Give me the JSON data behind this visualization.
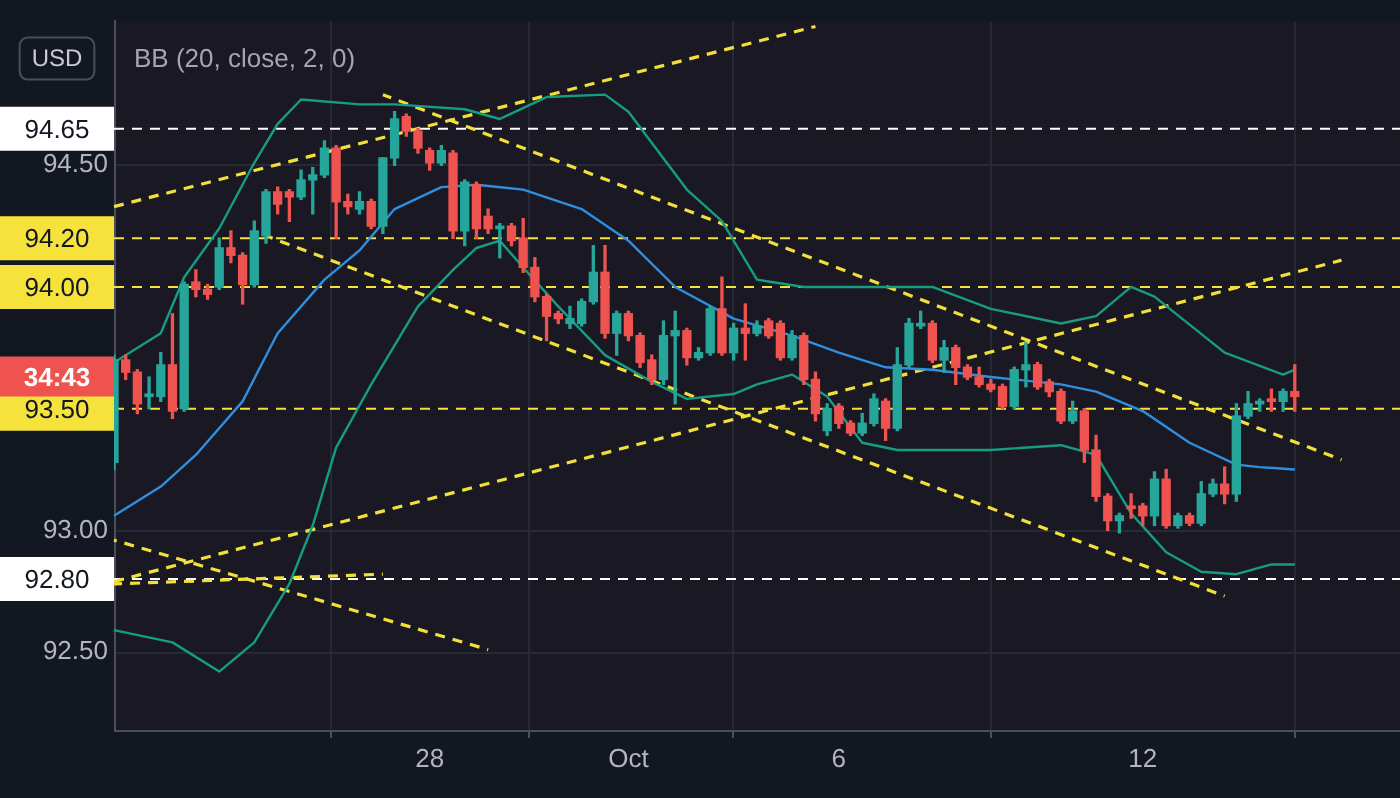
{
  "chart_data": {
    "type": "candlestick",
    "title": "BB (20, close, 2, 0)",
    "ylabel": "USD",
    "ylim": [
      92.18,
      95.09
    ],
    "yticks": [
      {
        "value": 92.5,
        "label": "92.50"
      },
      {
        "value": 93,
        "label": "93.00"
      },
      {
        "value": 94.5,
        "label": "94.50"
      }
    ],
    "grid": true,
    "categories": [
      null,
      null,
      null,
      null,
      null,
      null,
      null,
      null,
      null,
      null,
      null,
      null,
      null,
      null,
      null,
      null,
      null,
      null,
      null,
      null,
      null,
      null,
      null,
      null,
      null,
      null,
      null,
      "28",
      null,
      null,
      null,
      null,
      null,
      null,
      null,
      null,
      null,
      null,
      null,
      null,
      null,
      null,
      null,
      null,
      "Oct",
      null,
      null,
      null,
      null,
      null,
      null,
      null,
      null,
      null,
      null,
      null,
      null,
      null,
      null,
      null,
      null,
      null,
      "6",
      null,
      null,
      null,
      null,
      null,
      null,
      null,
      null,
      null,
      null,
      null,
      null,
      null,
      null,
      null,
      null,
      null,
      null,
      null,
      null,
      null,
      null,
      null,
      null,
      null,
      "12",
      null,
      null,
      null,
      null,
      null,
      null,
      null,
      null,
      null,
      null,
      null,
      null,
      null,
      null,
      null,
      null,
      null,
      null,
      null,
      null,
      null,
      null
    ],
    "ohlc": [
      [
        93.28,
        93.72,
        93.25,
        93.7
      ],
      [
        93.7,
        93.72,
        93.62,
        93.65
      ],
      [
        93.65,
        93.66,
        93.48,
        93.52
      ],
      [
        93.55,
        93.63,
        93.5,
        93.56
      ],
      [
        93.55,
        93.73,
        93.53,
        93.68
      ],
      [
        93.68,
        93.89,
        93.46,
        93.49
      ],
      [
        93.5,
        94.02,
        93.49,
        94.01
      ],
      [
        94.02,
        94.07,
        93.96,
        93.99
      ],
      [
        93.99,
        94.01,
        93.95,
        93.97
      ],
      [
        94.0,
        94.2,
        93.99,
        94.16
      ],
      [
        94.16,
        94.23,
        94.1,
        94.13
      ],
      [
        94.13,
        94.14,
        93.93,
        94.01
      ],
      [
        94.01,
        94.27,
        94.0,
        94.23
      ],
      [
        94.21,
        94.4,
        94.18,
        94.39
      ],
      [
        94.39,
        94.41,
        94.3,
        94.34
      ],
      [
        94.39,
        94.4,
        94.27,
        94.37
      ],
      [
        94.37,
        94.48,
        94.36,
        94.44
      ],
      [
        94.44,
        94.49,
        94.3,
        94.46
      ],
      [
        94.46,
        94.6,
        94.45,
        94.57
      ],
      [
        94.57,
        94.58,
        94.2,
        94.35
      ],
      [
        94.35,
        94.38,
        94.3,
        94.33
      ],
      [
        94.32,
        94.39,
        94.3,
        94.35
      ],
      [
        94.35,
        94.36,
        94.24,
        94.25
      ],
      [
        94.25,
        94.53,
        94.22,
        94.53
      ],
      [
        94.53,
        94.72,
        94.5,
        94.69
      ],
      [
        94.7,
        94.71,
        94.62,
        94.64
      ],
      [
        94.64,
        94.65,
        94.55,
        94.57
      ],
      [
        94.56,
        94.57,
        94.48,
        94.51
      ],
      [
        94.51,
        94.58,
        94.5,
        94.56
      ],
      [
        94.55,
        94.56,
        94.2,
        94.23
      ],
      [
        94.23,
        94.44,
        94.17,
        94.43
      ],
      [
        94.42,
        94.43,
        94.2,
        94.24
      ],
      [
        94.29,
        94.32,
        94.22,
        94.24
      ],
      [
        94.24,
        94.26,
        94.12,
        94.25
      ],
      [
        94.25,
        94.26,
        94.17,
        94.19
      ],
      [
        94.2,
        94.28,
        94.06,
        94.08
      ],
      [
        94.08,
        94.12,
        93.94,
        93.96
      ],
      [
        93.96,
        93.97,
        93.78,
        93.88
      ],
      [
        93.89,
        93.9,
        93.85,
        93.87
      ],
      [
        93.85,
        93.92,
        93.83,
        93.87
      ],
      [
        93.85,
        93.95,
        93.84,
        93.94
      ],
      [
        93.94,
        94.17,
        93.93,
        94.06
      ],
      [
        94.06,
        94.17,
        93.79,
        93.81
      ],
      [
        93.81,
        93.9,
        93.72,
        93.89
      ],
      [
        93.89,
        93.9,
        93.78,
        93.8
      ],
      [
        93.8,
        93.81,
        93.67,
        93.69
      ],
      [
        93.7,
        93.72,
        93.6,
        93.62
      ],
      [
        93.62,
        93.86,
        93.6,
        93.8
      ],
      [
        93.8,
        93.9,
        93.52,
        93.82
      ],
      [
        93.82,
        93.83,
        93.68,
        93.71
      ],
      [
        93.71,
        93.75,
        93.7,
        93.73
      ],
      [
        93.73,
        93.92,
        93.72,
        93.91
      ],
      [
        93.91,
        94.04,
        93.72,
        93.73
      ],
      [
        93.73,
        93.85,
        93.7,
        93.83
      ],
      [
        93.83,
        93.93,
        93.7,
        93.81
      ],
      [
        93.81,
        93.86,
        93.8,
        93.84
      ],
      [
        93.86,
        93.87,
        93.79,
        93.8
      ],
      [
        93.85,
        93.86,
        93.7,
        93.71
      ],
      [
        93.71,
        93.82,
        93.7,
        93.8
      ],
      [
        93.8,
        93.81,
        93.6,
        93.62
      ],
      [
        93.62,
        93.65,
        93.45,
        93.48
      ],
      [
        93.41,
        93.52,
        93.39,
        93.5
      ],
      [
        93.51,
        93.52,
        93.42,
        93.44
      ],
      [
        93.44,
        93.45,
        93.39,
        93.4
      ],
      [
        93.4,
        93.48,
        93.39,
        93.44
      ],
      [
        93.44,
        93.56,
        93.43,
        93.54
      ],
      [
        93.53,
        93.54,
        93.37,
        93.42
      ],
      [
        93.42,
        93.75,
        93.41,
        93.68
      ],
      [
        93.68,
        93.87,
        93.67,
        93.85
      ],
      [
        93.84,
        93.9,
        93.83,
        93.85
      ],
      [
        93.85,
        93.86,
        93.69,
        93.7
      ],
      [
        93.7,
        93.78,
        93.65,
        93.75
      ],
      [
        93.75,
        93.76,
        93.6,
        93.67
      ],
      [
        93.67,
        93.68,
        93.62,
        93.63
      ],
      [
        93.63,
        93.67,
        93.59,
        93.6
      ],
      [
        93.6,
        93.62,
        93.57,
        93.58
      ],
      [
        93.59,
        93.6,
        93.5,
        93.51
      ],
      [
        93.51,
        93.67,
        93.5,
        93.66
      ],
      [
        93.66,
        93.77,
        93.59,
        93.68
      ],
      [
        93.68,
        93.69,
        93.58,
        93.59
      ],
      [
        93.61,
        93.62,
        93.55,
        93.57
      ],
      [
        93.57,
        93.58,
        93.44,
        93.45
      ],
      [
        93.45,
        93.53,
        93.44,
        93.49
      ],
      [
        93.49,
        93.5,
        93.28,
        93.33
      ],
      [
        93.33,
        93.39,
        93.12,
        93.14
      ],
      [
        93.14,
        93.15,
        93.0,
        93.04
      ],
      [
        93.04,
        93.07,
        92.99,
        93.06
      ],
      [
        93.1,
        93.15,
        93.05,
        93.09
      ],
      [
        93.1,
        93.11,
        93.02,
        93.06
      ],
      [
        93.06,
        93.24,
        93.02,
        93.21
      ],
      [
        93.21,
        93.25,
        93.01,
        93.02
      ],
      [
        93.02,
        93.07,
        93.01,
        93.06
      ],
      [
        93.06,
        93.07,
        93.02,
        93.03
      ],
      [
        93.03,
        93.2,
        93.02,
        93.15
      ],
      [
        93.15,
        93.21,
        93.14,
        93.19
      ],
      [
        93.19,
        93.26,
        93.11,
        93.15
      ],
      [
        93.15,
        93.52,
        93.12,
        93.47
      ],
      [
        93.47,
        93.57,
        93.46,
        93.52
      ],
      [
        93.52,
        93.54,
        93.49,
        93.53
      ],
      [
        93.54,
        93.58,
        93.49,
        93.53
      ],
      [
        93.53,
        93.58,
        93.49,
        93.57
      ],
      [
        93.57,
        93.68,
        93.49,
        93.55
      ],
      null,
      null,
      null,
      null,
      null,
      null,
      null,
      null,
      null
    ],
    "colors": [
      "#26a69a",
      "#ef5350",
      "#ef5350",
      "#26a69a",
      "#26a69a",
      "#ef5350",
      "#26a69a",
      "#ef5350",
      "#ef5350",
      "#26a69a",
      "#ef5350",
      "#ef5350",
      "#26a69a",
      "#26a69a",
      "#ef5350",
      "#ef5350",
      "#26a69a",
      "#26a69a",
      "#26a69a",
      "#ef5350",
      "#ef5350",
      "#26a69a",
      "#ef5350",
      "#26a69a",
      "#26a69a",
      "#ef5350",
      "#ef5350",
      "#ef5350",
      "#26a69a",
      "#ef5350",
      "#26a69a",
      "#ef5350",
      "#ef5350",
      "#26a69a",
      "#ef5350",
      "#ef5350",
      "#ef5350",
      "#ef5350",
      "#ef5350",
      "#26a69a",
      "#26a69a",
      "#26a69a",
      "#ef5350",
      "#26a69a",
      "#ef5350",
      "#ef5350",
      "#ef5350",
      "#26a69a",
      "#26a69a",
      "#ef5350",
      "#26a69a",
      "#26a69a",
      "#ef5350",
      "#26a69a",
      "#ef5350",
      "#26a69a",
      "#ef5350",
      "#ef5350",
      "#26a69a",
      "#ef5350",
      "#ef5350",
      "#26a69a",
      "#ef5350",
      "#ef5350",
      "#26a69a",
      "#26a69a",
      "#ef5350",
      "#26a69a",
      "#26a69a",
      "#26a69a",
      "#ef5350",
      "#26a69a",
      "#ef5350",
      "#ef5350",
      "#ef5350",
      "#ef5350",
      "#ef5350",
      "#26a69a",
      "#26a69a",
      "#ef5350",
      "#ef5350",
      "#ef5350",
      "#26a69a",
      "#ef5350",
      "#ef5350",
      "#ef5350",
      "#26a69a",
      "#ef5350",
      "#ef5350",
      "#26a69a",
      "#ef5350",
      "#26a69a",
      "#ef5350",
      "#26a69a",
      "#26a69a",
      "#ef5350",
      "#26a69a",
      "#26a69a",
      "#26a69a",
      "#ef5350",
      "#26a69a",
      "#ef5350",
      null,
      null,
      null,
      null,
      null,
      null,
      null,
      null,
      null
    ],
    "series": [
      {
        "type": "line",
        "color": "#2e8fe0",
        "values": [
          93.06,
          null,
          null,
          null,
          93.18,
          null,
          null,
          93.31,
          null,
          null,
          null,
          93.53,
          null,
          null,
          93.81,
          null,
          null,
          null,
          94.03,
          null,
          null,
          94.15,
          null,
          null,
          94.32,
          null,
          null,
          null,
          94.41,
          null,
          null,
          94.42,
          null,
          null,
          null,
          94.4,
          null,
          null,
          null,
          null,
          94.32,
          null,
          null,
          null,
          94.19,
          null,
          null,
          null,
          94.0,
          null,
          null,
          null,
          null,
          93.87,
          null,
          null,
          null,
          null,
          93.8,
          null,
          null,
          null,
          93.73,
          null,
          null,
          null,
          93.67,
          null,
          null,
          null,
          93.66,
          null,
          null,
          null,
          null,
          93.63,
          null,
          null,
          null,
          null,
          null,
          93.6,
          null,
          null,
          93.57,
          null,
          null,
          null,
          93.49,
          null,
          null,
          null,
          93.36,
          null,
          null,
          null,
          93.27,
          null,
          93.26,
          null,
          null,
          93.25,
          null,
          null,
          null,
          null,
          null,
          null,
          null,
          null,
          null
        ]
      },
      {
        "type": "line",
        "color": "#179c84",
        "values": [
          93.69,
          null,
          null,
          null,
          93.81,
          null,
          94.04,
          null,
          null,
          94.24,
          null,
          null,
          94.51,
          null,
          94.67,
          null,
          94.77,
          null,
          null,
          null,
          null,
          94.75,
          null,
          null,
          94.75,
          null,
          null,
          null,
          null,
          null,
          94.73,
          null,
          null,
          94.69,
          null,
          null,
          null,
          94.78,
          null,
          null,
          null,
          null,
          94.79,
          null,
          94.72,
          null,
          null,
          null,
          null,
          94.4,
          null,
          null,
          94.27,
          null,
          null,
          94.03,
          null,
          null,
          null,
          94.0,
          null,
          null,
          null,
          null,
          94.0,
          null,
          null,
          null,
          null,
          null,
          94.0,
          null,
          null,
          null,
          null,
          93.91,
          null,
          null,
          null,
          null,
          null,
          93.85,
          null,
          null,
          93.88,
          null,
          null,
          94.0,
          null,
          93.96,
          null,
          null,
          null,
          null,
          null,
          93.73,
          null,
          null,
          null,
          null,
          93.64,
          93.66,
          null,
          null,
          null,
          null,
          null,
          null,
          null,
          null,
          null
        ]
      },
      {
        "type": "line",
        "color": "#179c84",
        "values": [
          92.59,
          null,
          null,
          null,
          null,
          92.54,
          null,
          null,
          null,
          92.42,
          null,
          null,
          92.54,
          null,
          null,
          92.78,
          null,
          93.02,
          null,
          93.34,
          null,
          null,
          93.6,
          null,
          null,
          null,
          93.92,
          null,
          null,
          94.07,
          null,
          94.16,
          null,
          94.19,
          null,
          94.08,
          null,
          null,
          93.92,
          null,
          null,
          null,
          93.72,
          null,
          null,
          null,
          93.61,
          null,
          null,
          93.54,
          null,
          null,
          null,
          93.56,
          null,
          93.6,
          null,
          null,
          93.64,
          null,
          null,
          93.55,
          null,
          null,
          93.36,
          null,
          null,
          93.33,
          null,
          null,
          93.33,
          null,
          null,
          null,
          null,
          93.33,
          null,
          null,
          null,
          null,
          null,
          93.35,
          null,
          null,
          93.31,
          null,
          null,
          93.07,
          null,
          null,
          92.91,
          null,
          null,
          92.83,
          null,
          null,
          92.82,
          null,
          null,
          92.86,
          null,
          92.86,
          null,
          null,
          null,
          null,
          null,
          null,
          null,
          null,
          null
        ]
      },
      {
        "type": "line",
        "color": "#f2e03a",
        "line_style": "dashed",
        "values": [
          94.33,
          null,
          null,
          null,
          null,
          null,
          null,
          null,
          null,
          null,
          null,
          null,
          null,
          null,
          null,
          null,
          null,
          null,
          null,
          null,
          null,
          null,
          null,
          null,
          null,
          null,
          null,
          null,
          null,
          null,
          null,
          null,
          null,
          null,
          null,
          null,
          null,
          null,
          null,
          null,
          null,
          null,
          null,
          null,
          null,
          null,
          null,
          null,
          null,
          null,
          null,
          null,
          null,
          null,
          null,
          null,
          null,
          null,
          null,
          null,
          95.07,
          null,
          null,
          null,
          null,
          null,
          null,
          null,
          null,
          null,
          null,
          null,
          null,
          null,
          null,
          null,
          null,
          null,
          null,
          null,
          null,
          null,
          null,
          null,
          null,
          null,
          null,
          null,
          null,
          null,
          null,
          null,
          null,
          null,
          null,
          null,
          null,
          null,
          null,
          null,
          null,
          null,
          null,
          null,
          null,
          null,
          null,
          null,
          null,
          null,
          null
        ]
      },
      {
        "type": "line",
        "color": "#f2e03a",
        "line_style": "dashed",
        "values": [
          null,
          null,
          null,
          null,
          null,
          null,
          null,
          null,
          null,
          null,
          null,
          null,
          null,
          null,
          null,
          null,
          null,
          null,
          null,
          null,
          null,
          null,
          null,
          94.79,
          null,
          null,
          null,
          null,
          null,
          null,
          null,
          null,
          null,
          null,
          null,
          null,
          null,
          null,
          null,
          null,
          null,
          null,
          null,
          null,
          null,
          null,
          null,
          null,
          null,
          null,
          null,
          null,
          null,
          null,
          null,
          null,
          null,
          null,
          null,
          null,
          null,
          null,
          null,
          null,
          null,
          null,
          null,
          null,
          null,
          null,
          null,
          null,
          null,
          null,
          null,
          null,
          null,
          null,
          null,
          null,
          null,
          null,
          null,
          null,
          null,
          null,
          null,
          null,
          null,
          null,
          null,
          null,
          null,
          null,
          null,
          null,
          null,
          null,
          null,
          null,
          null,
          null,
          null,
          null,
          null,
          93.29,
          null,
          null,
          null,
          null,
          null
        ]
      },
      {
        "type": "line",
        "color": "#f2e03a",
        "line_style": "dashed",
        "values": [
          null,
          null,
          null,
          null,
          null,
          null,
          null,
          null,
          null,
          null,
          null,
          null,
          null,
          94.21,
          null,
          null,
          null,
          null,
          null,
          null,
          null,
          null,
          null,
          null,
          null,
          null,
          null,
          null,
          null,
          null,
          null,
          null,
          null,
          null,
          null,
          null,
          null,
          null,
          null,
          null,
          null,
          null,
          null,
          null,
          null,
          null,
          null,
          null,
          null,
          null,
          null,
          null,
          null,
          null,
          null,
          null,
          null,
          null,
          null,
          null,
          null,
          null,
          null,
          null,
          null,
          null,
          null,
          null,
          null,
          null,
          null,
          null,
          null,
          null,
          null,
          null,
          null,
          null,
          null,
          null,
          null,
          null,
          null,
          null,
          null,
          null,
          null,
          null,
          null,
          null,
          null,
          null,
          null,
          null,
          null,
          92.73,
          null,
          null,
          null,
          null,
          null,
          null,
          null,
          null,
          null,
          null,
          null,
          null,
          null,
          null,
          null
        ]
      },
      {
        "type": "line",
        "color": "#f2e03a",
        "line_style": "dashed",
        "values": [
          92.79,
          null,
          null,
          null,
          null,
          null,
          null,
          null,
          null,
          null,
          null,
          null,
          null,
          null,
          null,
          null,
          null,
          null,
          null,
          null,
          null,
          null,
          null,
          null,
          null,
          null,
          null,
          null,
          null,
          null,
          null,
          null,
          null,
          null,
          null,
          null,
          null,
          null,
          null,
          null,
          null,
          null,
          null,
          null,
          null,
          null,
          null,
          null,
          null,
          null,
          null,
          null,
          null,
          null,
          null,
          null,
          null,
          null,
          null,
          null,
          null,
          null,
          null,
          null,
          null,
          null,
          null,
          null,
          null,
          null,
          null,
          null,
          null,
          null,
          null,
          null,
          null,
          null,
          null,
          null,
          null,
          null,
          null,
          null,
          null,
          null,
          null,
          null,
          null,
          null,
          null,
          null,
          null,
          null,
          null,
          null,
          null,
          null,
          null,
          null,
          null,
          null,
          null,
          null,
          null,
          94.11,
          null,
          null,
          null,
          null,
          null
        ]
      },
      {
        "type": "line",
        "color": "#f2e03a",
        "line_style": "dashed",
        "values": [
          92.96,
          null,
          null,
          null,
          null,
          null,
          null,
          null,
          null,
          null,
          null,
          null,
          null,
          null,
          null,
          null,
          null,
          null,
          null,
          null,
          null,
          null,
          null,
          null,
          null,
          null,
          null,
          null,
          null,
          null,
          null,
          null,
          92.51,
          null,
          null,
          null,
          null,
          null,
          null,
          null,
          null,
          null,
          null,
          null,
          null,
          null,
          null,
          null,
          null,
          null,
          null,
          null,
          null,
          null,
          null,
          null,
          null,
          null,
          null,
          null,
          null,
          null,
          null,
          null,
          null,
          null,
          null,
          null,
          null,
          null,
          null,
          null,
          null,
          null,
          null,
          null,
          null,
          null,
          null,
          null,
          null,
          null,
          null,
          null,
          null,
          null,
          null,
          null,
          null,
          null,
          null,
          null,
          null,
          null,
          null,
          null,
          null,
          null,
          null,
          null,
          null,
          null,
          null,
          null,
          null,
          null,
          null,
          null,
          null,
          null,
          null
        ]
      },
      {
        "type": "line",
        "color": "#f2e03a",
        "line_style": "dashed",
        "values": [
          92.78,
          null,
          null,
          null,
          null,
          null,
          null,
          null,
          null,
          null,
          null,
          null,
          null,
          null,
          null,
          null,
          null,
          null,
          null,
          null,
          null,
          null,
          null,
          92.82,
          null,
          null,
          null,
          null,
          null,
          null,
          null,
          null,
          null,
          null,
          null,
          null,
          null,
          null,
          null,
          null,
          null,
          null,
          null,
          null,
          null,
          null,
          null,
          null,
          null,
          null,
          null,
          null,
          null,
          null,
          null,
          null,
          null,
          null,
          null,
          null,
          null,
          null,
          null,
          null,
          null,
          null,
          null,
          null,
          null,
          null,
          null,
          null,
          null,
          null,
          null,
          null,
          null,
          null,
          null,
          null,
          null,
          null,
          null,
          null,
          null,
          null,
          null,
          null,
          null,
          null,
          null,
          null,
          null,
          null,
          null,
          null,
          null,
          null,
          null,
          null,
          null,
          null,
          null,
          null,
          null,
          null,
          null,
          null,
          null,
          null,
          null
        ]
      }
    ],
    "ref_lines": [
      {
        "axis": "y",
        "value": 94.65,
        "label": "94.65",
        "color": "#ffffff",
        "line_style": "dashed"
      },
      {
        "axis": "y",
        "value": 94.2,
        "label": "94.20",
        "color": "#f5e23b",
        "line_style": "dashed"
      },
      {
        "axis": "y",
        "value": 94.0,
        "label": "94.00",
        "color": "#f5e23b",
        "line_style": "dashed"
      },
      {
        "axis": "y",
        "value": 93.5,
        "label": "93.50",
        "color": "#f5e23b",
        "line_style": "dashed"
      },
      {
        "axis": "y",
        "value": 92.8,
        "label": "92.80",
        "color": "#ffffff",
        "line_style": "dashed"
      }
    ],
    "annotations": [
      "34:43"
    ]
  }
}
